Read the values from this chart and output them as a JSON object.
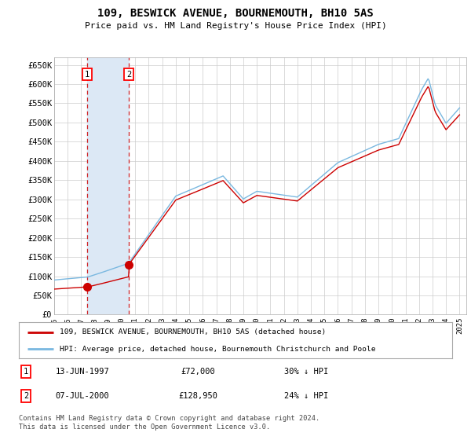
{
  "title": "109, BESWICK AVENUE, BOURNEMOUTH, BH10 5AS",
  "subtitle": "Price paid vs. HM Land Registry's House Price Index (HPI)",
  "ylim": [
    0,
    670000
  ],
  "yticks": [
    0,
    50000,
    100000,
    150000,
    200000,
    250000,
    300000,
    350000,
    400000,
    450000,
    500000,
    550000,
    600000,
    650000
  ],
  "ytick_labels": [
    "£0",
    "£50K",
    "£100K",
    "£150K",
    "£200K",
    "£250K",
    "£300K",
    "£350K",
    "£400K",
    "£450K",
    "£500K",
    "£550K",
    "£600K",
    "£650K"
  ],
  "hpi_color": "#7ab8e0",
  "price_color": "#cc0000",
  "purchase1_year": 1997.45,
  "purchase1_price": 72000,
  "purchase2_year": 2000.52,
  "purchase2_price": 128950,
  "hpi_discount1": 0.3,
  "hpi_discount2": 0.24,
  "legend_label1": "109, BESWICK AVENUE, BOURNEMOUTH, BH10 5AS (detached house)",
  "legend_label2": "HPI: Average price, detached house, Bournemouth Christchurch and Poole",
  "footer": "Contains HM Land Registry data © Crown copyright and database right 2024.\nThis data is licensed under the Open Government Licence v3.0.",
  "table_row1": [
    "1",
    "13-JUN-1997",
    "£72,000",
    "30% ↓ HPI"
  ],
  "table_row2": [
    "2",
    "07-JUL-2000",
    "£128,950",
    "24% ↓ HPI"
  ],
  "background_color": "#ffffff",
  "grid_color": "#cccccc",
  "shade_color": "#dce8f5",
  "xmin": 1995,
  "xmax": 2025.5
}
